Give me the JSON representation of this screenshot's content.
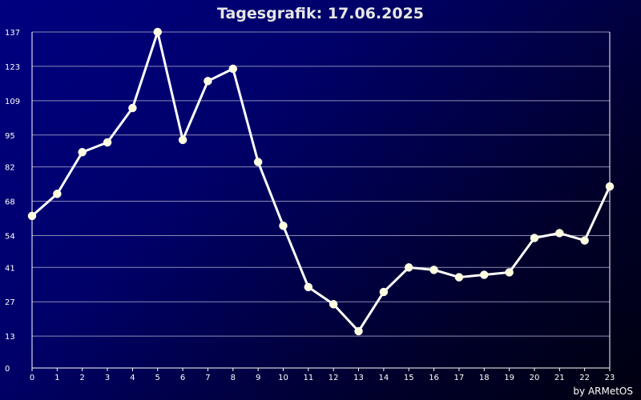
{
  "chart_data": {
    "type": "line",
    "title": "Tagesgrafik: 17.06.2025",
    "x": [
      0,
      1,
      2,
      3,
      4,
      5,
      6,
      7,
      8,
      9,
      10,
      11,
      12,
      13,
      14,
      15,
      16,
      17,
      18,
      19,
      20,
      21,
      22,
      23
    ],
    "series": [
      {
        "values": [
          62,
          71,
          88,
          92,
          106,
          137,
          93,
          117,
          122,
          84,
          58,
          33,
          26,
          15,
          31,
          41,
          40,
          37,
          38,
          39,
          53,
          55,
          52,
          74
        ]
      }
    ],
    "xlabel": "",
    "ylabel": "",
    "xlim": [
      0,
      23
    ],
    "ylim": [
      0,
      137
    ],
    "yticks": [
      0,
      13,
      27,
      41,
      54,
      68,
      82,
      95,
      109,
      123,
      137
    ],
    "xticks": [
      0,
      1,
      2,
      3,
      4,
      5,
      6,
      7,
      8,
      9,
      10,
      11,
      12,
      13,
      14,
      15,
      16,
      17,
      18,
      19,
      20,
      21,
      22,
      23
    ],
    "grid": true,
    "colors": {
      "line": "#ffffff",
      "marker": "#ffffe0",
      "grid": "#8a8ab8",
      "frame": "#ffffff"
    }
  },
  "footer": {
    "credit": "by ARMetOS"
  }
}
